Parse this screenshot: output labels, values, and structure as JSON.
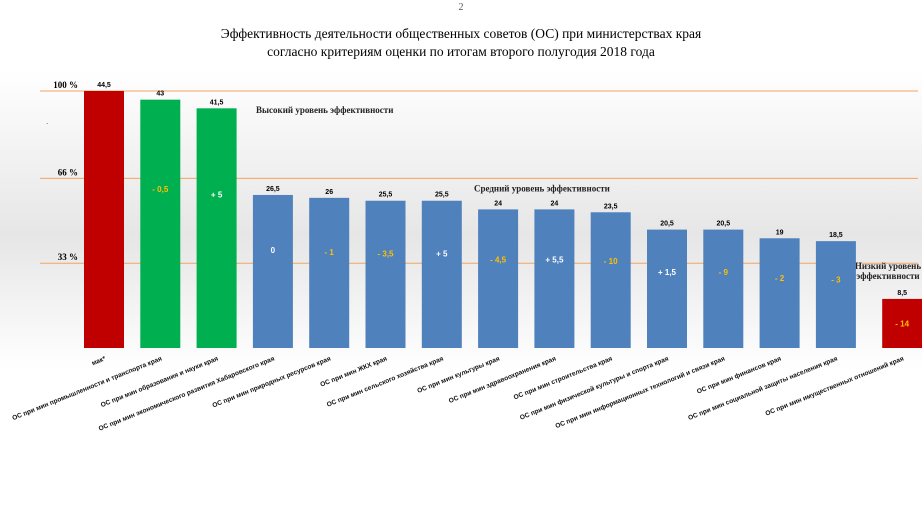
{
  "page_number": "2",
  "title_line1": "Эффективность деятельности общественных советов (ОС) при министерствах края",
  "title_line2": "согласно критериям оценки по итогам второго полугодия 2018 года",
  "colors": {
    "red": "#c00000",
    "green": "#00b050",
    "blue": "#4f81bd",
    "positive_text": "#ffffff",
    "negative_text": "#ffc000",
    "level_line": "#f4a460"
  },
  "chart_data": {
    "type": "bar",
    "ylim": [
      0,
      44.5
    ],
    "grid": false,
    "categories": [
      "мак*",
      "ОС при мин промышленности и транспорта края",
      "ОС при мин образования и науки края",
      "ОС при мин экономического развития Хабаровского края",
      "ОС при мин природных ресурсов края",
      "ОС при мин ЖКХ края",
      "ОС при мин сельского хозяйства края",
      "ОС при мин культуры края",
      "ОС при мин здравоохранения края",
      "ОС при мин строительства края",
      "ОС при мин физической культуры и спорта края",
      "ОС при мин информационных технологий и связи края",
      "ОС при мин финансов края",
      "ОС при мин социальной защиты населения края",
      "ОС при мин имущественных отношений края"
    ],
    "values": [
      44.5,
      43,
      41.5,
      26.5,
      26,
      25.5,
      25.5,
      24,
      24,
      23.5,
      20.5,
      20.5,
      19,
      18.5,
      8.5
    ],
    "value_labels": [
      "44,5",
      "43",
      "41,5",
      "26,5",
      "26",
      "25,5",
      "25,5",
      "24",
      "24",
      "23,5",
      "20,5",
      "20,5",
      "19",
      "18,5",
      "8,5"
    ],
    "changes": [
      "",
      "- 0,5",
      "+ 5",
      "0",
      "- 1",
      "- 3,5",
      "+ 5",
      "- 4,5",
      "+ 5,5",
      "- 10",
      "+ 1,5",
      "- 9",
      "- 2",
      "- 3",
      "- 14"
    ],
    "bar_colors": [
      "red",
      "green",
      "green",
      "blue",
      "blue",
      "blue",
      "blue",
      "blue",
      "blue",
      "blue",
      "blue",
      "blue",
      "blue",
      "blue",
      "red"
    ],
    "levels": [
      {
        "percent": 100,
        "label": "100 %",
        "zone": "Высокий уровень эффективности"
      },
      {
        "percent": 66,
        "label": "66 %",
        "zone": "Средний уровень эффективности"
      },
      {
        "percent": 33,
        "label": "33 %",
        "zone": "Низкий уровень эффективности"
      }
    ],
    "stray_mark": "."
  }
}
